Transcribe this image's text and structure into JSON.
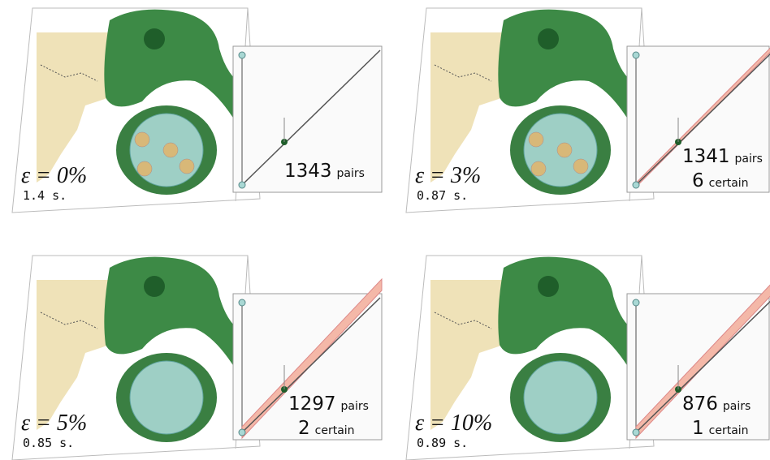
{
  "panels": [
    {
      "epsilon": "ε = 0%",
      "time": "1.4 s.",
      "pairs": "1343",
      "pairs_label": "pairs"
    },
    {
      "epsilon": "ε = 3%",
      "time": "0.87 s.",
      "pairs": "1341",
      "pairs_label": "pairs",
      "certain": "6",
      "certain_label": "certain"
    },
    {
      "epsilon": "ε = 5%",
      "time": "0.85 s.",
      "pairs": "1297",
      "pairs_label": "pairs",
      "certain": "2",
      "certain_label": "certain"
    },
    {
      "epsilon": "ε = 10%",
      "time": "0.89 s.",
      "pairs": "876",
      "pairs_label": "pairs",
      "certain": "1",
      "certain_label": "certain"
    }
  ]
}
